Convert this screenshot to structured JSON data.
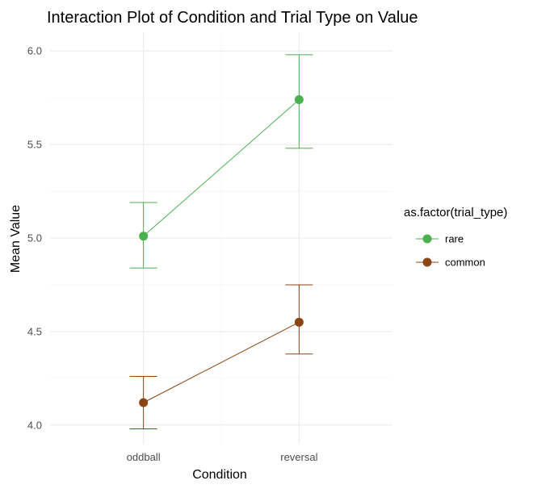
{
  "chart_data": {
    "type": "line",
    "title": "Interaction Plot of Condition and Trial Type on Value",
    "xlabel": "Condition",
    "ylabel": "Mean Value",
    "categories": [
      "oddball",
      "reversal"
    ],
    "ylim": [
      3.9,
      6.1
    ],
    "yticks": [
      "4.0",
      "4.5",
      "5.0",
      "5.5",
      "6.0"
    ],
    "grid": true,
    "legend": {
      "title": "as.factor(trial_type)",
      "position": "right"
    },
    "series": [
      {
        "name": "rare",
        "color": "#4caf50",
        "values": [
          5.01,
          5.74
        ],
        "error_low": [
          4.84,
          5.48
        ],
        "error_high": [
          5.19,
          5.98
        ]
      },
      {
        "name": "common",
        "color": "#8b4513",
        "values": [
          4.12,
          4.55
        ],
        "error_low": [
          3.98,
          4.38
        ],
        "error_high": [
          4.26,
          4.75
        ]
      }
    ]
  }
}
